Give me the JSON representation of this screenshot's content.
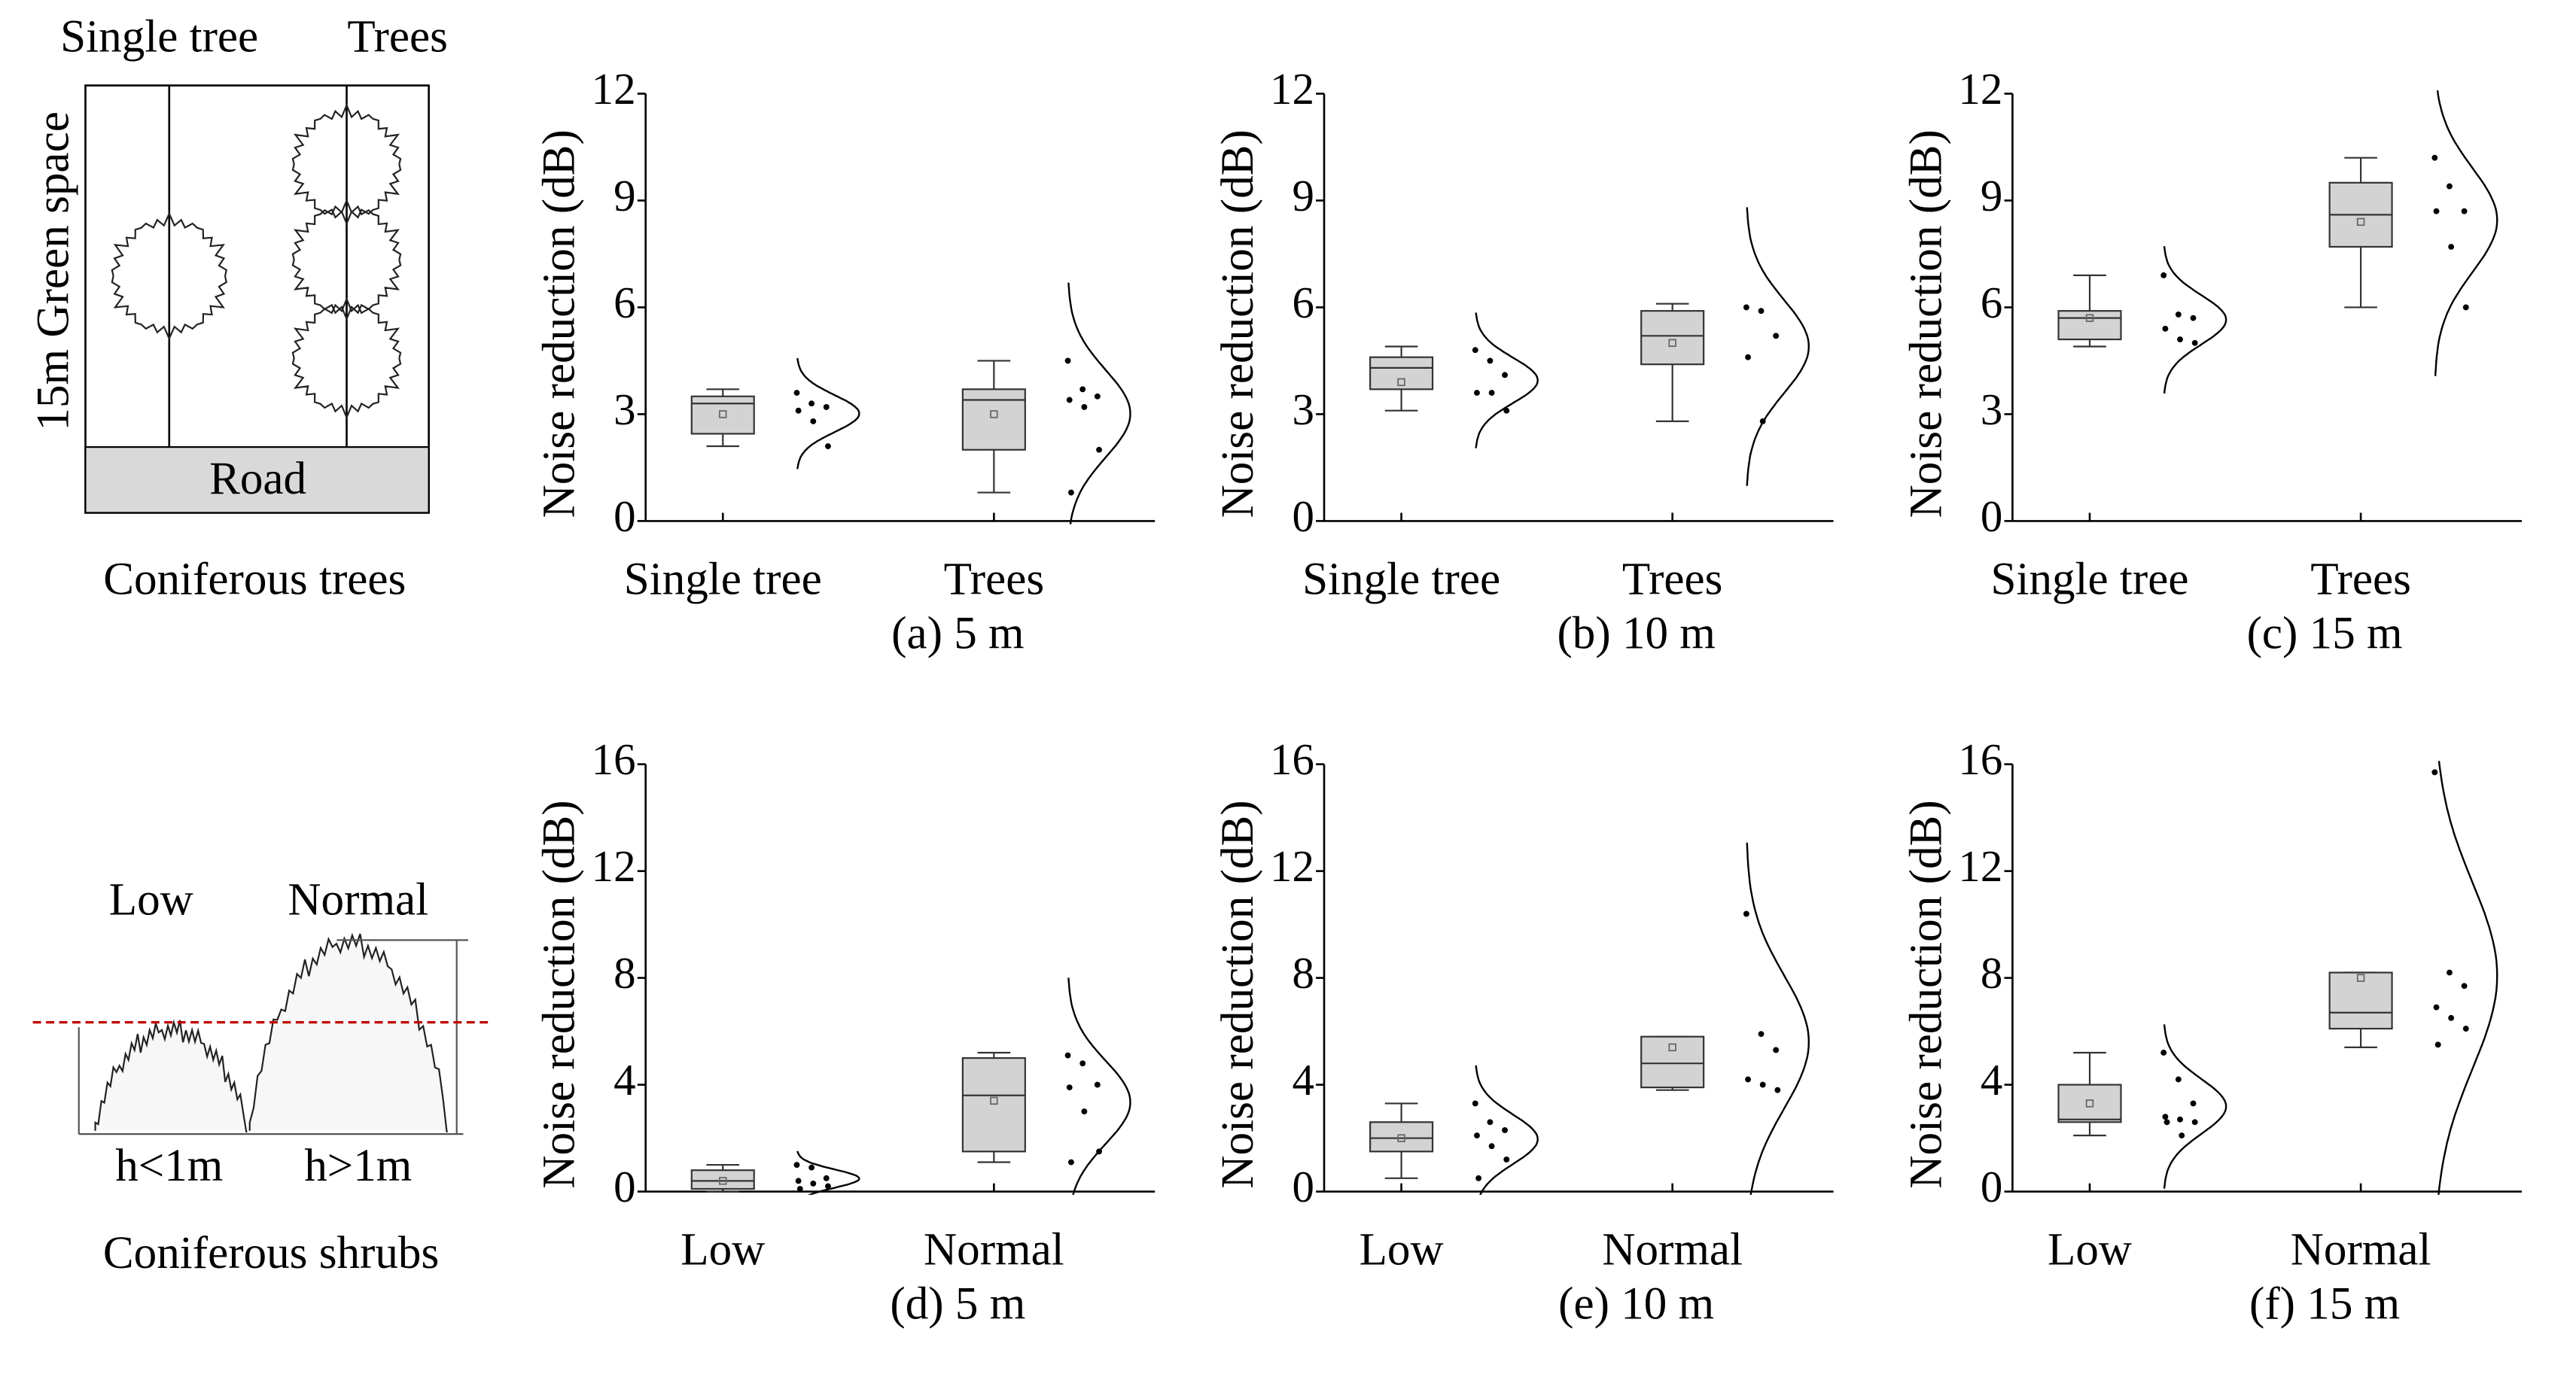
{
  "diagrams": {
    "trees": {
      "labels": [
        "Single tree",
        "Trees"
      ],
      "side": "15m Green space",
      "road": "Road",
      "caption": "Coniferous trees"
    },
    "shrubs": {
      "labels": [
        "Low",
        "Normal"
      ],
      "heights": [
        "h<1m",
        "h>1m"
      ],
      "caption": "Coniferous shrubs"
    }
  },
  "chart_data": [
    {
      "type": "box",
      "ylabel": "Noise reduction (dB)",
      "caption": "(a) 5 m",
      "categories": [
        "Single tree",
        "Trees"
      ],
      "ylim": [
        0,
        12
      ],
      "yticks": [
        0,
        3,
        6,
        9,
        12
      ],
      "color": "#d3d3d3",
      "boxes": [
        {
          "min": 2.1,
          "q1": 2.45,
          "median": 3.3,
          "q3": 3.5,
          "max": 3.7,
          "mean": 3.0,
          "points": [
            3.6,
            3.3,
            3.2,
            3.1,
            2.8,
            2.1
          ]
        },
        {
          "min": 0.8,
          "q1": 2.0,
          "median": 3.4,
          "q3": 3.7,
          "max": 4.5,
          "mean": 3.0,
          "points": [
            4.5,
            3.7,
            3.5,
            3.4,
            3.2,
            2.0,
            0.8
          ]
        }
      ]
    },
    {
      "type": "box",
      "ylabel": "Noise reduction (dB)",
      "caption": "(b) 10 m",
      "categories": [
        "Single tree",
        "Trees"
      ],
      "ylim": [
        0,
        12
      ],
      "yticks": [
        0,
        3,
        6,
        9,
        12
      ],
      "color": "#d3d3d3",
      "boxes": [
        {
          "min": 3.1,
          "q1": 3.7,
          "median": 4.3,
          "q3": 4.6,
          "max": 4.9,
          "mean": 3.9,
          "points": [
            4.8,
            4.5,
            4.1,
            3.6,
            3.6,
            3.1
          ]
        },
        {
          "min": 2.8,
          "q1": 4.4,
          "median": 5.2,
          "q3": 5.9,
          "max": 6.1,
          "mean": 5.0,
          "points": [
            6.0,
            5.9,
            5.2,
            4.6,
            2.8
          ]
        }
      ]
    },
    {
      "type": "box",
      "ylabel": "Noise reduction (dB)",
      "caption": "(c) 15 m",
      "categories": [
        "Single tree",
        "Trees"
      ],
      "ylim": [
        0,
        12
      ],
      "yticks": [
        0,
        3,
        6,
        9,
        12
      ],
      "color": "#d3d3d3",
      "boxes": [
        {
          "min": 4.9,
          "q1": 5.1,
          "median": 5.7,
          "q3": 5.9,
          "max": 6.9,
          "mean": 5.7,
          "points": [
            6.9,
            5.8,
            5.7,
            5.4,
            5.1,
            5.0
          ]
        },
        {
          "min": 6.0,
          "q1": 7.7,
          "median": 8.6,
          "q3": 9.5,
          "max": 10.2,
          "mean": 8.4,
          "points": [
            10.2,
            9.4,
            8.7,
            8.7,
            7.7,
            6.0
          ]
        }
      ]
    },
    {
      "type": "box",
      "ylabel": "Noise reduction (dB)",
      "caption": "(d) 5 m",
      "categories": [
        "Low",
        "Normal"
      ],
      "ylim": [
        0,
        16
      ],
      "yticks": [
        0,
        4,
        8,
        12,
        16
      ],
      "color": "#d3d3d3",
      "boxes": [
        {
          "min": 0,
          "q1": 0.1,
          "median": 0.4,
          "q3": 0.8,
          "max": 1.0,
          "mean": 0.4,
          "points": [
            1.0,
            0.9,
            0.5,
            0.4,
            0.3,
            0.2,
            0.1
          ]
        },
        {
          "min": 1.1,
          "q1": 1.5,
          "median": 3.6,
          "q3": 5.0,
          "max": 5.2,
          "mean": 3.4,
          "points": [
            5.1,
            4.8,
            4.0,
            3.9,
            3.0,
            1.5,
            1.1
          ]
        }
      ]
    },
    {
      "type": "box",
      "ylabel": "Noise reduction (dB)",
      "caption": "(e) 10 m",
      "categories": [
        "Low",
        "Normal"
      ],
      "ylim": [
        0,
        16
      ],
      "yticks": [
        0,
        4,
        8,
        12,
        16
      ],
      "color": "#d3d3d3",
      "boxes": [
        {
          "min": 0.5,
          "q1": 1.5,
          "median": 2.0,
          "q3": 2.6,
          "max": 3.3,
          "mean": 2.0,
          "points": [
            3.3,
            2.6,
            2.3,
            2.1,
            1.7,
            1.2,
            0.5
          ]
        },
        {
          "min": 3.8,
          "q1": 3.9,
          "median": 4.8,
          "q3": 5.8,
          "max": 5.8,
          "mean": 5.4,
          "points": [
            10.4,
            5.9,
            5.3,
            4.2,
            4.0,
            3.8
          ]
        }
      ]
    },
    {
      "type": "box",
      "ylabel": "Noise reduction (dB)",
      "caption": "(f) 15 m",
      "categories": [
        "Low",
        "Normal"
      ],
      "ylim": [
        0,
        16
      ],
      "yticks": [
        0,
        4,
        8,
        12,
        16
      ],
      "color": "#d3d3d3",
      "boxes": [
        {
          "min": 2.1,
          "q1": 2.6,
          "median": 2.7,
          "q3": 4.0,
          "max": 5.2,
          "mean": 3.3,
          "points": [
            5.2,
            4.2,
            3.3,
            2.8,
            2.7,
            2.6,
            2.6,
            2.1
          ]
        },
        {
          "min": 5.4,
          "q1": 6.1,
          "median": 6.7,
          "q3": 8.2,
          "max": 8.2,
          "mean": 8.0,
          "points": [
            15.7,
            8.2,
            7.7,
            6.9,
            6.5,
            6.1,
            5.5
          ]
        }
      ]
    }
  ]
}
